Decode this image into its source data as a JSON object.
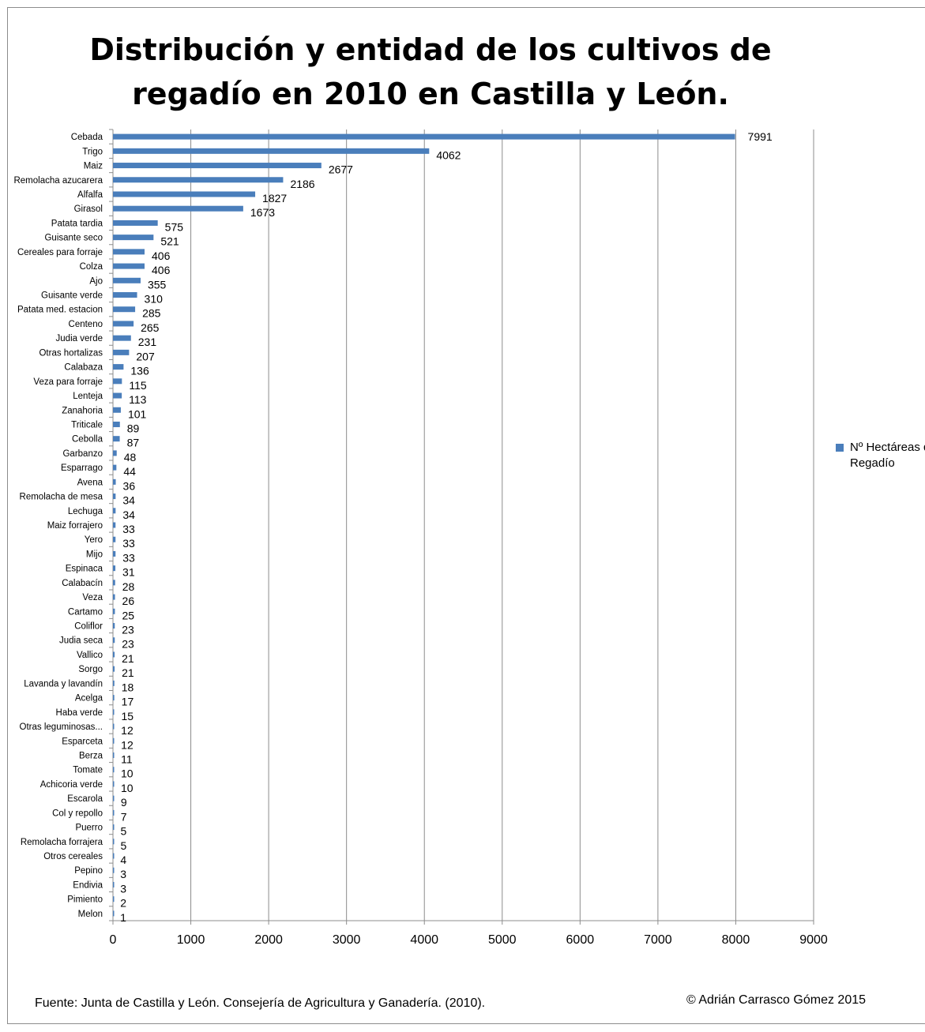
{
  "title_line1": "Distribución y entidad de los cultivos de",
  "title_line2": "regadío en 2010 en Castilla y León.",
  "legend_label": "Nº Hectáreas de Regadío",
  "source_note": "Fuente: Junta de Castilla y León. Consejería de Agricultura y Ganadería. (2010).",
  "copyright_note": "© Adrián Carrasco Gómez 2015",
  "colors": {
    "bar": "#4a7ebb",
    "grid": "#8c8c8c",
    "axis": "#8c8c8c"
  },
  "chart_data": {
    "type": "bar",
    "orientation": "horizontal",
    "title": "Distribución y entidad de los cultivos de regadío en 2010 en Castilla y León.",
    "xlim": [
      0,
      9000
    ],
    "x_ticks": [
      0,
      1000,
      2000,
      3000,
      4000,
      5000,
      6000,
      7000,
      8000,
      9000
    ],
    "grid": "vertical",
    "legend_position": "right",
    "series": [
      {
        "name": "Nº Hectáreas de Regadío"
      }
    ],
    "categories": [
      "Cebada",
      "Trigo",
      "Maiz",
      "Remolacha azucarera",
      "Alfalfa",
      "Girasol",
      "Patata tardia",
      "Guisante seco",
      "Cereales para forraje",
      "Colza",
      "Ajo",
      "Guisante verde",
      "Patata med. estacion",
      "Centeno",
      "Judia verde",
      "Otras hortalizas",
      "Calabaza",
      "Veza para forraje",
      "Lenteja",
      "Zanahoria",
      "Triticale",
      "Cebolla",
      "Garbanzo",
      "Esparrago",
      "Avena",
      "Remolacha de mesa",
      "Lechuga",
      "Maiz forrajero",
      "Yero",
      "Mijo",
      "Espinaca",
      "Calabacín",
      "Veza",
      "Cartamo",
      "Coliflor",
      "Judia seca",
      "Vallico",
      "Sorgo",
      "Lavanda y lavandín",
      "Acelga",
      "Haba verde",
      "Otras leguminosas...",
      "Esparceta",
      "Berza",
      "Tomate",
      "Achicoria verde",
      "Escarola",
      "Col y repollo",
      "Puerro",
      "Remolacha forrajera",
      "Otros cereales",
      "Pepino",
      "Endivia",
      "Pimiento",
      "Melon"
    ],
    "values": [
      7991,
      4062,
      2677,
      2186,
      1827,
      1673,
      575,
      521,
      406,
      406,
      355,
      310,
      285,
      265,
      231,
      207,
      136,
      115,
      113,
      101,
      89,
      87,
      48,
      44,
      36,
      34,
      34,
      33,
      33,
      33,
      31,
      28,
      26,
      25,
      23,
      23,
      21,
      21,
      18,
      17,
      15,
      12,
      12,
      11,
      10,
      10,
      9,
      7,
      5,
      5,
      4,
      3,
      3,
      2,
      1
    ]
  }
}
